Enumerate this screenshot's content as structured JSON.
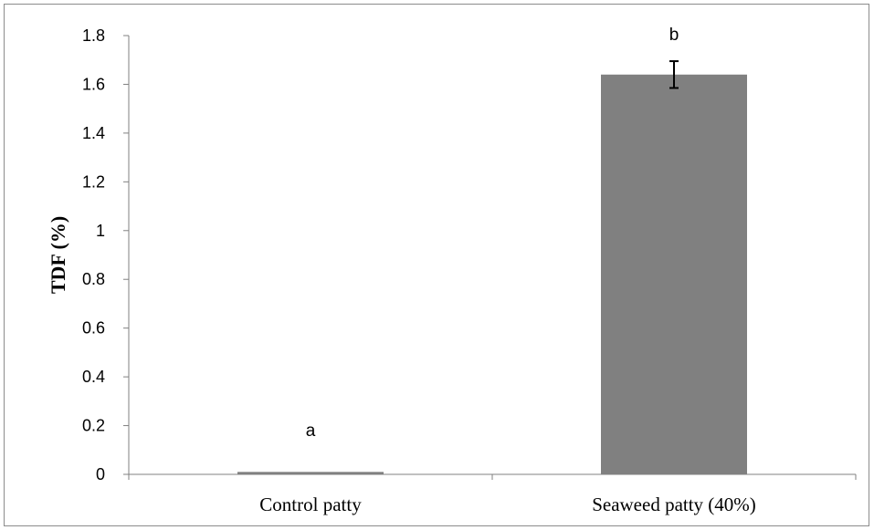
{
  "chart_data": {
    "type": "bar",
    "title": "",
    "xlabel": "",
    "ylabel": "TDF (%)",
    "categories": [
      "Control patty",
      "Seaweed patty (40%)"
    ],
    "values": [
      0.01,
      1.64
    ],
    "errors": [
      0,
      0.055
    ],
    "significance_labels": [
      "a",
      "b"
    ],
    "ylim": [
      0,
      1.8
    ],
    "y_ticks": [
      "0",
      "0.2",
      "0.4",
      "0.6",
      "0.8",
      "1",
      "1.2",
      "1.4",
      "1.6",
      "1.8"
    ],
    "grid": false,
    "legend": "none",
    "bar_color": "#808080"
  }
}
